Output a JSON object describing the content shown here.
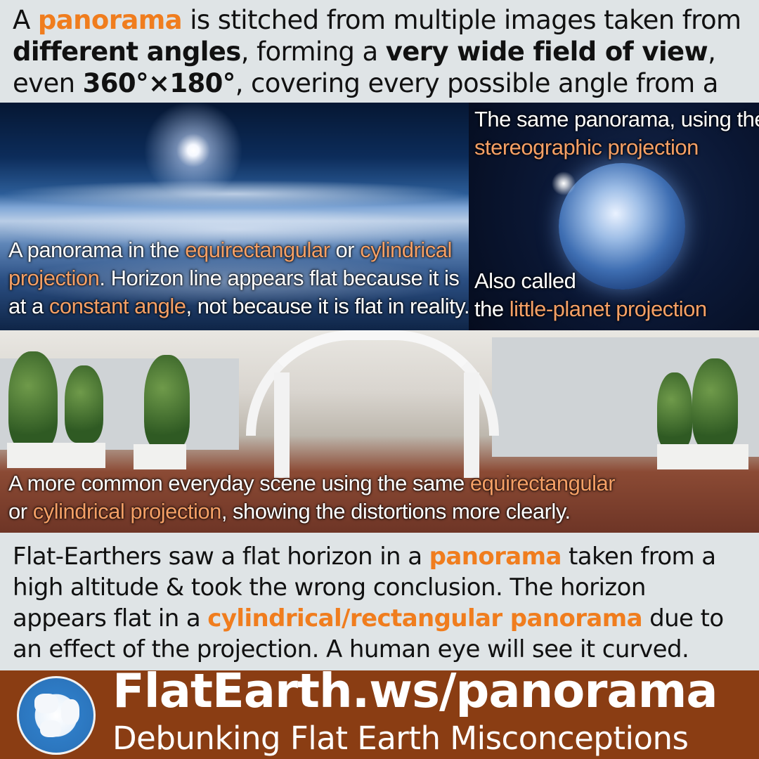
{
  "intro": {
    "t1": "A ",
    "panorama": "panorama",
    "t2": " is stitched from multiple images taken from ",
    "different_angles": "different angles",
    "t3": ", forming a ",
    "wide_fov": "very wide field of view",
    "t4": ", even ",
    "degrees": "360°×180°",
    "t5": ", covering every possible angle from a viewer."
  },
  "earth_caption": {
    "t1": "A panorama in the ",
    "equirect": "equirectangular",
    "t2": " or ",
    "cylindrical": "cylindrical",
    "projection": "projection",
    "t3": ". Horizon line appears flat because it is",
    "t4": "at a ",
    "constant_angle": "constant angle",
    "t5": ", not because it is flat in reality."
  },
  "planet_caption_top": {
    "line1": "The same panorama, using the",
    "stereo": "stereographic projection"
  },
  "planet_caption_bottom": {
    "line1": "Also called",
    "t1": "the ",
    "little_planet": "little-planet projection"
  },
  "courtyard_caption": {
    "t1": "A more common everyday scene using the same ",
    "equirect": "equirectangular",
    "t2": "or ",
    "cyl_proj": "cylindrical projection",
    "t3": ", showing the distortions more clearly."
  },
  "conclusion": {
    "t1": "Flat-Earthers saw a flat horizon in a ",
    "panorama": "panorama",
    "t2": " taken from a high altitude & took the wrong conclusion. The horizon appears flat in a ",
    "cyl_rect": "cylindrical/rectangular panorama",
    "t3": " due to an effect of the projection. A human eye will see it curved."
  },
  "footer": {
    "site": "FlatEarth.ws/panorama",
    "tagline": "Debunking Flat Earth Misconceptions",
    "logo_icon": "globe-icon"
  },
  "colors": {
    "accent": "#f07d1e",
    "caption_accent": "#f5a066",
    "footer_bg": "#8a3d13",
    "page_bg": "#dfe4e6"
  }
}
